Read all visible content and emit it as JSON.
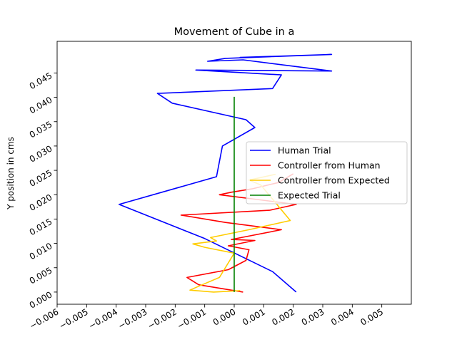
{
  "chart_data": {
    "type": "line",
    "title": "Movement of Cube in a",
    "xlabel": "",
    "ylabel": "Y position in cms",
    "xlim": [
      -0.006,
      0.006
    ],
    "ylim": [
      -0.0025,
      0.0515
    ],
    "xticks": [
      -0.006,
      -0.005,
      -0.004,
      -0.003,
      -0.002,
      -0.001,
      0.0,
      0.001,
      0.002,
      0.003,
      0.004,
      0.005
    ],
    "xtick_labels": [
      "−0.006",
      "−0.005",
      "−0.004",
      "−0.003",
      "−0.002",
      "−0.001",
      "0.000",
      "0.001",
      "0.002",
      "0.003",
      "0.004",
      "0.005"
    ],
    "yticks": [
      0.0,
      0.005,
      0.01,
      0.015,
      0.02,
      0.025,
      0.03,
      0.035,
      0.04,
      0.045
    ],
    "ytick_labels": [
      "0.000",
      "0.005",
      "0.010",
      "0.015",
      "0.020",
      "0.025",
      "0.030",
      "0.035",
      "0.040",
      "0.045"
    ],
    "grid": false,
    "legend_position": "center-right",
    "series": [
      {
        "name": "Human Trial",
        "color": "#0000ff",
        "points": [
          [
            0.0021,
            0.0
          ],
          [
            0.0013,
            0.0042
          ],
          [
            -0.001,
            0.011
          ],
          [
            -0.0039,
            0.018
          ],
          [
            -0.0006,
            0.0237
          ],
          [
            -0.0004,
            0.03
          ],
          [
            0.0007,
            0.0338
          ],
          [
            0.0004,
            0.0354
          ],
          [
            -0.0021,
            0.0388
          ],
          [
            -0.0026,
            0.0408
          ],
          [
            0.0013,
            0.0418
          ],
          [
            0.0016,
            0.0446
          ],
          [
            -0.0013,
            0.0456
          ],
          [
            0.0033,
            0.0454
          ],
          [
            0.0003,
            0.0477
          ],
          [
            -0.0009,
            0.0474
          ],
          [
            -0.0003,
            0.048
          ],
          [
            0.0033,
            0.0488
          ],
          [
            0.0002,
            0.0482
          ],
          [
            0.0014,
            0.0484
          ]
        ]
      },
      {
        "name": "Controller from Human",
        "color": "#ff0000",
        "points": [
          [
            0.0003,
            0.0
          ],
          [
            -0.0012,
            0.0015
          ],
          [
            -0.0016,
            0.003
          ],
          [
            -0.0002,
            0.0046
          ],
          [
            0.0004,
            0.0065
          ],
          [
            0.0005,
            0.0087
          ],
          [
            -0.0002,
            0.0095
          ],
          [
            0.0007,
            0.0106
          ],
          [
            -0.0001,
            0.0108
          ],
          [
            0.0016,
            0.0128
          ],
          [
            -0.0003,
            0.0143
          ],
          [
            -0.0018,
            0.0158
          ],
          [
            0.0012,
            0.0168
          ],
          [
            0.0021,
            0.018
          ],
          [
            -0.0005,
            0.02
          ],
          [
            -0.0001,
            0.0205
          ],
          [
            0.0006,
            0.0212
          ],
          [
            0.0015,
            0.0225
          ],
          [
            0.002,
            0.0243
          ]
        ]
      },
      {
        "name": "Controller from Expected",
        "color": "#ffcc00",
        "points": [
          [
            0.0002,
            0.0003
          ],
          [
            -0.0007,
            0.0
          ],
          [
            -0.0015,
            0.0004
          ],
          [
            -0.0012,
            0.0012
          ],
          [
            -0.0005,
            0.003
          ],
          [
            0.0,
            0.008
          ],
          [
            -0.001,
            0.0092
          ],
          [
            -0.0014,
            0.0099
          ],
          [
            -0.0006,
            0.0105
          ],
          [
            -0.0008,
            0.0112
          ],
          [
            0.0005,
            0.0128
          ],
          [
            0.0019,
            0.0147
          ],
          [
            0.0009,
            0.022
          ],
          [
            0.0005,
            0.023
          ],
          [
            0.0014,
            0.0242
          ]
        ]
      },
      {
        "name": "Expected Trial",
        "color": "#008000",
        "points": [
          [
            0.0,
            0.0
          ],
          [
            0.0,
            0.0401
          ]
        ]
      }
    ]
  }
}
